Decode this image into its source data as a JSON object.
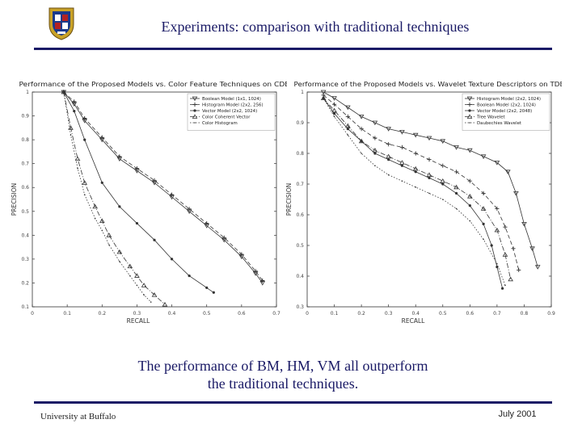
{
  "slide": {
    "title": "Experiments: comparison with traditional techniques",
    "caption_line1": "The performance of BM, HM, VM all outperform",
    "caption_line2": "the traditional techniques.",
    "footer_left": "University at Buffalo",
    "footer_right": "July 2001",
    "accent_color": "#1a1a66",
    "logo_icon": "university-crest-icon"
  },
  "chart_data": [
    {
      "type": "line",
      "title": "Performance of the Proposed Models vs. Color Feature Techniques on CDB",
      "xlabel": "RECALL",
      "ylabel": "PRECISION",
      "xlim": [
        0,
        0.7
      ],
      "ylim": [
        0.1,
        1
      ],
      "x_ticks": [
        "0",
        "0.1",
        "0.2",
        "0.3",
        "0.4",
        "0.5",
        "0.6",
        "0.7"
      ],
      "y_ticks": [
        "0.1",
        "0.2",
        "0.3",
        "0.4",
        "0.5",
        "0.6",
        "0.7",
        "0.8",
        "0.9",
        "1"
      ],
      "grid": false,
      "legend_position": "top-right",
      "series": [
        {
          "name": "Boolean Model (1x1, 1024)",
          "marker": "triangle-down",
          "dash": "solid",
          "x": [
            0.09,
            0.12,
            0.15,
            0.2,
            0.25,
            0.3,
            0.35,
            0.4,
            0.45,
            0.5,
            0.55,
            0.6,
            0.64,
            0.66
          ],
          "y": [
            1.0,
            0.95,
            0.88,
            0.8,
            0.72,
            0.67,
            0.62,
            0.56,
            0.5,
            0.44,
            0.38,
            0.31,
            0.24,
            0.2
          ]
        },
        {
          "name": "Histogram Model (2x2, 256)",
          "marker": "plus",
          "dash": "dashed",
          "x": [
            0.09,
            0.12,
            0.15,
            0.2,
            0.25,
            0.3,
            0.35,
            0.4,
            0.45,
            0.5,
            0.55,
            0.6,
            0.64,
            0.66
          ],
          "y": [
            1.0,
            0.96,
            0.89,
            0.81,
            0.73,
            0.68,
            0.63,
            0.57,
            0.51,
            0.45,
            0.39,
            0.32,
            0.25,
            0.21
          ]
        },
        {
          "name": "Vector Model (2x2, 1024)",
          "marker": "dot",
          "dash": "solid",
          "x": [
            0.09,
            0.12,
            0.15,
            0.2,
            0.25,
            0.3,
            0.35,
            0.4,
            0.45,
            0.5,
            0.52
          ],
          "y": [
            1.0,
            0.92,
            0.8,
            0.62,
            0.52,
            0.45,
            0.38,
            0.3,
            0.23,
            0.18,
            0.16
          ]
        },
        {
          "name": "Color Coherent Vector",
          "marker": "triangle-up",
          "dash": "dashdot",
          "x": [
            0.09,
            0.11,
            0.13,
            0.15,
            0.18,
            0.2,
            0.22,
            0.25,
            0.28,
            0.3,
            0.32,
            0.35,
            0.38
          ],
          "y": [
            1.0,
            0.85,
            0.72,
            0.62,
            0.52,
            0.46,
            0.4,
            0.33,
            0.27,
            0.23,
            0.19,
            0.15,
            0.11
          ]
        },
        {
          "name": "Color Histogram",
          "marker": "small-dot",
          "dash": "dotted",
          "x": [
            0.09,
            0.11,
            0.13,
            0.15,
            0.18,
            0.2,
            0.22,
            0.25,
            0.28,
            0.3,
            0.32,
            0.34
          ],
          "y": [
            1.0,
            0.82,
            0.68,
            0.57,
            0.47,
            0.42,
            0.36,
            0.29,
            0.23,
            0.19,
            0.15,
            0.12
          ]
        }
      ]
    },
    {
      "type": "line",
      "title": "Performance of the Proposed Models vs. Wavelet Texture Descriptors on TDB",
      "xlabel": "RECALL",
      "ylabel": "PRECISION",
      "xlim": [
        0,
        0.9
      ],
      "ylim": [
        0.3,
        1
      ],
      "x_ticks": [
        "0",
        "0.1",
        "0.2",
        "0.3",
        "0.4",
        "0.5",
        "0.6",
        "0.7",
        "0.8",
        "0.9"
      ],
      "y_ticks": [
        "0.3",
        "0.4",
        "0.5",
        "0.6",
        "0.7",
        "0.8",
        "0.9",
        "1"
      ],
      "grid": false,
      "legend_position": "top-right",
      "series": [
        {
          "name": "Histogram Model (2x2, 1024)",
          "marker": "triangle-down",
          "dash": "solid",
          "x": [
            0.06,
            0.1,
            0.15,
            0.2,
            0.25,
            0.3,
            0.35,
            0.4,
            0.45,
            0.5,
            0.55,
            0.6,
            0.65,
            0.7,
            0.74,
            0.77,
            0.8,
            0.83,
            0.85
          ],
          "y": [
            1.0,
            0.98,
            0.95,
            0.92,
            0.9,
            0.88,
            0.87,
            0.86,
            0.85,
            0.84,
            0.82,
            0.81,
            0.79,
            0.77,
            0.74,
            0.67,
            0.57,
            0.49,
            0.43
          ]
        },
        {
          "name": "Boolean Model (2x2, 1024)",
          "marker": "plus",
          "dash": "dashed",
          "x": [
            0.06,
            0.1,
            0.15,
            0.2,
            0.25,
            0.3,
            0.35,
            0.4,
            0.45,
            0.5,
            0.55,
            0.6,
            0.65,
            0.7,
            0.73,
            0.76,
            0.78
          ],
          "y": [
            0.99,
            0.96,
            0.92,
            0.88,
            0.85,
            0.83,
            0.82,
            0.8,
            0.78,
            0.76,
            0.74,
            0.71,
            0.67,
            0.62,
            0.56,
            0.49,
            0.42
          ]
        },
        {
          "name": "Vector Model (2x2, 2048)",
          "marker": "dot",
          "dash": "solid",
          "x": [
            0.06,
            0.1,
            0.15,
            0.2,
            0.25,
            0.3,
            0.35,
            0.4,
            0.45,
            0.5,
            0.55,
            0.6,
            0.65,
            0.68,
            0.7,
            0.72
          ],
          "y": [
            0.98,
            0.93,
            0.88,
            0.84,
            0.8,
            0.78,
            0.76,
            0.74,
            0.72,
            0.7,
            0.67,
            0.63,
            0.57,
            0.5,
            0.43,
            0.36
          ]
        },
        {
          "name": "Tree Wavelet",
          "marker": "triangle-up",
          "dash": "dashdot",
          "x": [
            0.06,
            0.1,
            0.15,
            0.2,
            0.25,
            0.3,
            0.35,
            0.4,
            0.45,
            0.5,
            0.55,
            0.6,
            0.65,
            0.7,
            0.73,
            0.75
          ],
          "y": [
            0.98,
            0.94,
            0.89,
            0.84,
            0.81,
            0.79,
            0.77,
            0.75,
            0.73,
            0.71,
            0.69,
            0.66,
            0.62,
            0.55,
            0.47,
            0.39
          ]
        },
        {
          "name": "Daubechies Wavelet",
          "marker": "small-dot",
          "dash": "dotted",
          "x": [
            0.06,
            0.1,
            0.15,
            0.2,
            0.25,
            0.3,
            0.35,
            0.4,
            0.45,
            0.5,
            0.55,
            0.6,
            0.65,
            0.7,
            0.73
          ],
          "y": [
            0.98,
            0.92,
            0.86,
            0.8,
            0.76,
            0.73,
            0.71,
            0.69,
            0.67,
            0.65,
            0.62,
            0.58,
            0.52,
            0.44,
            0.37
          ]
        }
      ]
    }
  ]
}
